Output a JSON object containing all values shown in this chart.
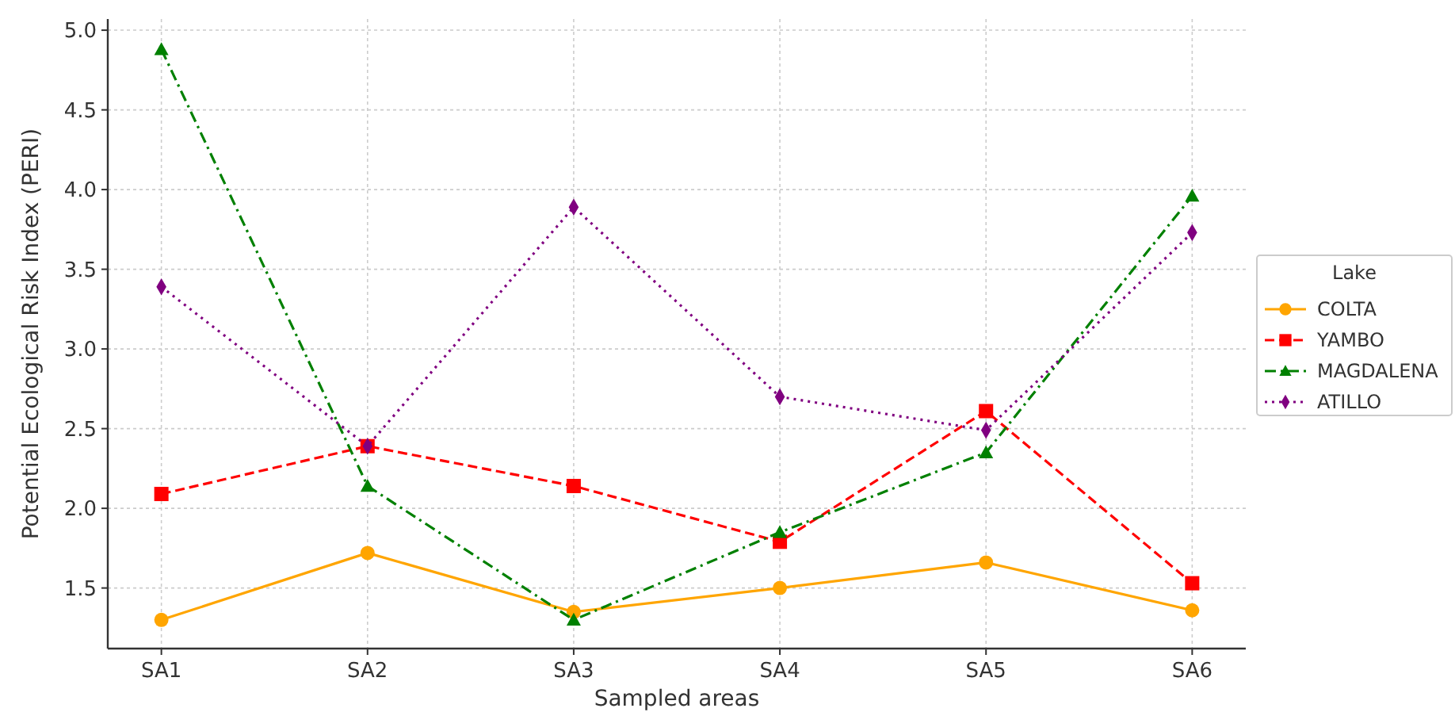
{
  "chart_data": {
    "type": "line",
    "xlabel": "Sampled areas",
    "ylabel": "Potential Ecological Risk Index (PERI)",
    "legend_title": "Lake",
    "categories": [
      "SA1",
      "SA2",
      "SA3",
      "SA4",
      "SA5",
      "SA6"
    ],
    "series": [
      {
        "name": "COLTA",
        "color": "#ffa500",
        "marker": "circle",
        "line_style": "solid",
        "values": [
          1.3,
          1.72,
          1.35,
          1.5,
          1.66,
          1.36
        ]
      },
      {
        "name": "YAMBO",
        "color": "#ff0000",
        "marker": "square",
        "line_style": "dashed",
        "values": [
          2.09,
          2.39,
          2.14,
          1.79,
          2.61,
          1.53
        ]
      },
      {
        "name": "MAGDALENA",
        "color": "#008000",
        "marker": "triangle",
        "line_style": "dashdot",
        "values": [
          4.88,
          2.14,
          1.3,
          1.85,
          2.35,
          3.96
        ]
      },
      {
        "name": "ATILLO",
        "color": "#800080",
        "marker": "diamond",
        "line_style": "dotted",
        "values": [
          3.39,
          2.39,
          3.89,
          2.7,
          2.49,
          3.73
        ]
      }
    ],
    "ylim": [
      1.12,
      5.07
    ],
    "yticks": [
      {
        "value": 1.5,
        "label": "1.5"
      },
      {
        "value": 2,
        "label": "2.0"
      },
      {
        "value": 2.5,
        "label": "2.5"
      },
      {
        "value": 3,
        "label": "3.0"
      },
      {
        "value": 3.5,
        "label": "3.5"
      },
      {
        "value": 4,
        "label": "4.0"
      },
      {
        "value": 4.5,
        "label": "4.5"
      },
      {
        "value": 5,
        "label": "5.0"
      }
    ],
    "grid": true,
    "legend": "right"
  }
}
